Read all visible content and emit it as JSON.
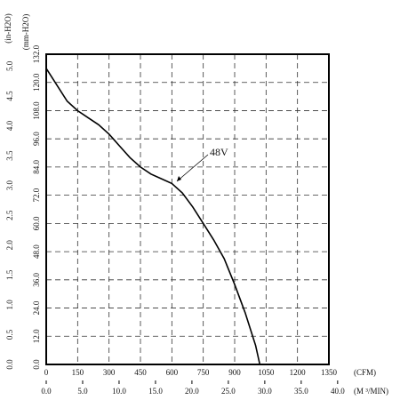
{
  "chart_data": {
    "type": "line",
    "y_label": "(mm-H2O)",
    "y2_label": "(in-H2O)",
    "x_label": "(CFM)",
    "x2_label": "(M ³/MIN)",
    "annotation": "48V",
    "xlim": [
      0,
      1350
    ],
    "xticks": [
      0,
      150,
      300,
      450,
      600,
      750,
      900,
      1050,
      1200,
      1350
    ],
    "x2lim": [
      0,
      38.8
    ],
    "x2ticks": [
      {
        "value": 0,
        "label": "0.0"
      },
      {
        "value": 5,
        "label": "5.0"
      },
      {
        "value": 10,
        "label": "10.0"
      },
      {
        "value": 15,
        "label": "15.0"
      },
      {
        "value": 20,
        "label": "20.0"
      },
      {
        "value": 25,
        "label": "25.0"
      },
      {
        "value": 30,
        "label": "30.0"
      },
      {
        "value": 35,
        "label": "35.0"
      },
      {
        "value": 40,
        "label": "40.0"
      }
    ],
    "ylim": [
      0,
      132
    ],
    "yticks": [
      {
        "value": 0,
        "label": "0.0"
      },
      {
        "value": 12,
        "label": "12.0"
      },
      {
        "value": 24,
        "label": "24.0"
      },
      {
        "value": 36,
        "label": "36.0"
      },
      {
        "value": 48,
        "label": "48.0"
      },
      {
        "value": 60,
        "label": "60.0"
      },
      {
        "value": 72,
        "label": "72.0"
      },
      {
        "value": 84,
        "label": "84.0"
      },
      {
        "value": 96,
        "label": "96.0"
      },
      {
        "value": 108,
        "label": "108.0"
      },
      {
        "value": 120,
        "label": "120.0"
      },
      {
        "value": 132,
        "label": "132.0"
      }
    ],
    "y2lim": [
      0,
      5.2
    ],
    "y2ticks": [
      {
        "value": 0,
        "label": "0.0"
      },
      0.5,
      {
        "value": 1,
        "label": "1.0"
      },
      1.5,
      {
        "value": 2,
        "label": "2.0"
      },
      2.5,
      {
        "value": 3,
        "label": "3.0"
      },
      3.5,
      {
        "value": 4,
        "label": "4.0"
      },
      4.5,
      {
        "value": 5,
        "label": "5.0"
      }
    ],
    "grid": true,
    "x": [
      0,
      50,
      100,
      150,
      200,
      250,
      300,
      350,
      400,
      450,
      500,
      550,
      600,
      650,
      700,
      750,
      800,
      850,
      900,
      950,
      1000,
      1020
    ],
    "series": [
      {
        "name": "48V",
        "color": "#000000",
        "values": [
          126,
          119,
          112,
          108,
          105,
          102,
          98,
          93,
          88,
          84,
          81,
          79,
          77,
          73,
          67,
          60,
          53,
          45,
          34,
          22,
          8,
          0
        ]
      }
    ]
  }
}
